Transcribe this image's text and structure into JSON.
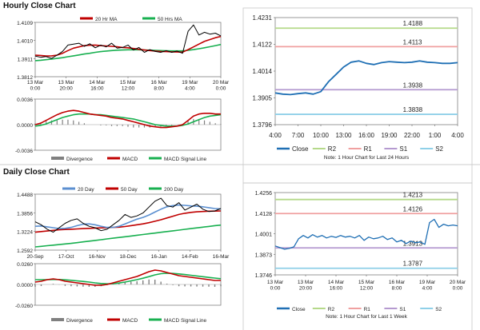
{
  "sections": {
    "hourly_title": "Hourly Close Chart",
    "daily_title": "Daily Close Chart"
  },
  "colors": {
    "close": "#1f6fb4",
    "r2": "#b5d98a",
    "r1": "#f0a0a0",
    "s1": "#b59ad0",
    "s2": "#8fd0e8",
    "ma20h": "#c00000",
    "ma50h": "#18b050",
    "d20": "#5b8fd0",
    "d50": "#c00000",
    "d200": "#18b050",
    "price": "#000000",
    "macd": "#c00000",
    "signal": "#18b050",
    "divergence": "#808080"
  },
  "chart_data": [
    {
      "id": "hourly_price",
      "type": "line",
      "legend": [
        "20 Hr MA",
        "50 Hrs MA"
      ],
      "y_ticks": [
        "1.4109",
        "1.4010",
        "1.3911",
        "1.3812"
      ],
      "ylim": [
        1.3812,
        1.4109
      ],
      "x_labels": [
        "13 Mar\n0:00",
        "13 Mar\n20:00",
        "14 Mar\n16:00",
        "15 Mar\n12:00",
        "16 Mar\n8:00",
        "19 Mar\n4:00",
        "20 Mar\n0:00"
      ],
      "series": [
        {
          "name": "Close",
          "values": [
            1.3925,
            1.3918,
            1.3922,
            1.3912,
            1.393,
            1.395,
            1.3985,
            1.399,
            1.3995,
            1.3978,
            1.3992,
            1.397,
            1.3985,
            1.3975,
            1.3995,
            1.3968,
            1.3972,
            1.3985,
            1.3958,
            1.3972,
            1.3945,
            1.396,
            1.395,
            1.3945,
            1.3955,
            1.3945,
            1.3952,
            1.394,
            1.406,
            1.4095,
            1.404,
            1.4055,
            1.4045,
            1.405,
            1.4035
          ]
        },
        {
          "name": "20 Hr MA",
          "values": [
            1.393,
            1.3928,
            1.3925,
            1.3926,
            1.393,
            1.394,
            1.3955,
            1.3968,
            1.3975,
            1.3982,
            1.3984,
            1.3985,
            1.3982,
            1.398,
            1.3978,
            1.3976,
            1.3972,
            1.397,
            1.3966,
            1.3962,
            1.3958,
            1.3955,
            1.3952,
            1.395,
            1.3949,
            1.3948,
            1.3947,
            1.3946,
            1.396,
            1.3975,
            1.399,
            1.4005,
            1.4015,
            1.4025,
            1.4032
          ]
        },
        {
          "name": "50 Hrs MA",
          "values": [
            1.39,
            1.3902,
            1.3905,
            1.3908,
            1.3912,
            1.3916,
            1.3921,
            1.3926,
            1.3931,
            1.3936,
            1.394,
            1.3945,
            1.3949,
            1.3952,
            1.3955,
            1.3957,
            1.3958,
            1.3959,
            1.3959,
            1.3959,
            1.3958,
            1.3957,
            1.3956,
            1.3955,
            1.3954,
            1.3953,
            1.3953,
            1.3953,
            1.3956,
            1.396,
            1.3965,
            1.397,
            1.3976,
            1.3982,
            1.3988
          ]
        }
      ]
    },
    {
      "id": "hourly_macd",
      "type": "line",
      "legend": [
        "Divergence",
        "MACD",
        "MACD Signal Line"
      ],
      "y_ticks": [
        "0.0036",
        "0.0000",
        "-0.0036"
      ],
      "ylim": [
        -0.0036,
        0.0036
      ],
      "x_labels": [
        "13 Mar\n0:00",
        "13 Mar\n20:00",
        "14 Mar\n16:00",
        "15 Mar\n12:00",
        "16 Mar\n8:00",
        "19 Mar\n4:00",
        "20 Mar\n0:00"
      ],
      "series": [
        {
          "name": "MACD",
          "values": [
            0.0,
            0.0002,
            0.0006,
            0.001,
            0.0014,
            0.0017,
            0.0019,
            0.002,
            0.0019,
            0.0017,
            0.0015,
            0.0014,
            0.0013,
            0.0012,
            0.001,
            0.0009,
            0.0008,
            0.0006,
            0.0004,
            0.0002,
            0.0,
            -0.0002,
            -0.0003,
            -0.0004,
            -0.0004,
            -0.0003,
            -0.0002,
            0.0,
            0.0006,
            0.0012,
            0.0015,
            0.0016,
            0.0016,
            0.0015,
            0.0015
          ]
        },
        {
          "name": "MACD Signal Line",
          "values": [
            -0.0002,
            -0.0001,
            0.0001,
            0.0004,
            0.0007,
            0.001,
            0.0012,
            0.0014,
            0.0015,
            0.0015,
            0.0015,
            0.0014,
            0.0014,
            0.0013,
            0.0012,
            0.0011,
            0.001,
            0.0009,
            0.0008,
            0.0006,
            0.0004,
            0.0002,
            0.0,
            -0.0001,
            -0.0002,
            -0.0002,
            -0.0002,
            -0.0001,
            0.0001,
            0.0004,
            0.0007,
            0.001,
            0.0012,
            0.0013,
            0.0014
          ]
        },
        {
          "name": "Divergence",
          "values": [
            0.0002,
            0.0003,
            0.0005,
            0.0006,
            0.0007,
            0.0007,
            0.0007,
            0.0006,
            0.0004,
            0.0002,
            0.0,
            0.0,
            -0.0001,
            -0.0001,
            -0.0002,
            -0.0002,
            -0.0002,
            -0.0003,
            -0.0004,
            -0.0004,
            -0.0004,
            -0.0004,
            -0.0003,
            -0.0003,
            -0.0002,
            -0.0001,
            0.0,
            0.0001,
            0.0005,
            0.0008,
            0.0008,
            0.0006,
            0.0004,
            0.0002,
            0.0001
          ]
        }
      ]
    },
    {
      "id": "hourly_levels",
      "type": "line",
      "y_ticks": [
        "1.4231",
        "1.4122",
        "1.4014",
        "1.3905",
        "1.3796"
      ],
      "ylim": [
        1.3796,
        1.4231
      ],
      "x_labels": [
        "4:00",
        "7:00",
        "10:00",
        "13:00",
        "16:00",
        "19:00",
        "22:00",
        "1:00",
        "4:00"
      ],
      "levels": [
        {
          "name": "R2",
          "value": 1.4188,
          "label": "1.4188"
        },
        {
          "name": "R1",
          "value": 1.4113,
          "label": "1.4113"
        },
        {
          "name": "S1",
          "value": 1.3938,
          "label": "1.3938"
        },
        {
          "name": "S2",
          "value": 1.3838,
          "label": "1.3838"
        }
      ],
      "series": [
        {
          "name": "Close",
          "values": [
            1.3925,
            1.392,
            1.3918,
            1.3922,
            1.3925,
            1.392,
            1.393,
            1.397,
            1.4,
            1.403,
            1.405,
            1.4055,
            1.4045,
            1.404,
            1.4048,
            1.4052,
            1.405,
            1.4048,
            1.405,
            1.4055,
            1.405,
            1.4048,
            1.4045,
            1.4045,
            1.4048
          ]
        }
      ],
      "legend": [
        "Close",
        "R2",
        "R1",
        "S1",
        "S2"
      ],
      "note": "Note: 1 Hour Chart for Last 24 Hours"
    },
    {
      "id": "daily_price",
      "type": "line",
      "legend": [
        "20 Day",
        "50 Day",
        "200 Day"
      ],
      "y_ticks": [
        "1.4488",
        "1.3856",
        "1.3224",
        "1.2592"
      ],
      "ylim": [
        1.2592,
        1.4488
      ],
      "x_labels": [
        "20-Sep",
        "17-Oct",
        "16-Nov",
        "18-Dec",
        "16-Jan",
        "14-Feb",
        "16-Mar"
      ],
      "series": [
        {
          "name": "Close",
          "values": [
            1.355,
            1.345,
            1.33,
            1.32,
            1.335,
            1.35,
            1.36,
            1.365,
            1.35,
            1.34,
            1.335,
            1.325,
            1.33,
            1.345,
            1.36,
            1.38,
            1.37,
            1.375,
            1.385,
            1.405,
            1.425,
            1.435,
            1.41,
            1.405,
            1.42,
            1.395,
            1.405,
            1.415,
            1.398,
            1.39,
            1.392,
            1.4
          ]
        },
        {
          "name": "20 Day",
          "values": [
            1.34,
            1.341,
            1.338,
            1.335,
            1.332,
            1.333,
            1.336,
            1.342,
            1.347,
            1.348,
            1.345,
            1.34,
            1.336,
            1.336,
            1.34,
            1.348,
            1.356,
            1.364,
            1.37,
            1.378,
            1.388,
            1.398,
            1.406,
            1.41,
            1.412,
            1.411,
            1.409,
            1.408,
            1.406,
            1.403,
            1.4,
            1.399
          ]
        },
        {
          "name": "50 Day",
          "values": [
            1.32,
            1.322,
            1.324,
            1.326,
            1.328,
            1.329,
            1.33,
            1.331,
            1.332,
            1.333,
            1.334,
            1.3345,
            1.335,
            1.336,
            1.337,
            1.339,
            1.342,
            1.345,
            1.348,
            1.352,
            1.357,
            1.362,
            1.368,
            1.374,
            1.38,
            1.384,
            1.387,
            1.389,
            1.39,
            1.391,
            1.3915,
            1.392
          ]
        },
        {
          "name": "200 Day",
          "values": [
            1.27,
            1.272,
            1.274,
            1.276,
            1.278,
            1.28,
            1.282,
            1.2845,
            1.287,
            1.2895,
            1.292,
            1.2945,
            1.297,
            1.2995,
            1.302,
            1.3045,
            1.307,
            1.3095,
            1.312,
            1.3145,
            1.317,
            1.3195,
            1.322,
            1.3245,
            1.327,
            1.3295,
            1.332,
            1.3345,
            1.337,
            1.3395,
            1.342,
            1.344
          ]
        }
      ]
    },
    {
      "id": "daily_macd",
      "type": "line",
      "legend": [
        "Divergence",
        "MACD",
        "MACD Signal Line"
      ],
      "y_ticks": [
        "0.0260",
        "0.0000",
        "-0.0260"
      ],
      "ylim": [
        -0.026,
        0.026
      ],
      "x_labels": [
        "20-Sep",
        "17-Oct",
        "16-Nov",
        "18-Dec",
        "16-Jan",
        "14-Feb",
        "16-Mar"
      ],
      "series": [
        {
          "name": "MACD",
          "values": [
            0.003,
            0.004,
            0.006,
            0.007,
            0.006,
            0.004,
            0.003,
            0.002,
            0.001,
            0.0,
            -0.001,
            -0.001,
            0.0,
            0.002,
            0.004,
            0.006,
            0.008,
            0.01,
            0.013,
            0.016,
            0.018,
            0.017,
            0.015,
            0.013,
            0.011,
            0.01,
            0.009,
            0.008,
            0.007,
            0.006,
            0.005,
            0.005
          ]
        },
        {
          "name": "MACD Signal Line",
          "values": [
            0.006,
            0.006,
            0.006,
            0.0062,
            0.0062,
            0.0058,
            0.0052,
            0.0045,
            0.0038,
            0.003,
            0.002,
            0.0012,
            0.0008,
            0.001,
            0.0018,
            0.003,
            0.0045,
            0.006,
            0.0078,
            0.0098,
            0.012,
            0.0135,
            0.014,
            0.0138,
            0.0132,
            0.0124,
            0.0115,
            0.0106,
            0.0097,
            0.0088,
            0.008,
            0.0072
          ]
        },
        {
          "name": "Divergence",
          "values": [
            -0.003,
            -0.002,
            0.0,
            0.0008,
            -0.0002,
            -0.0018,
            -0.0022,
            -0.0025,
            -0.0028,
            -0.003,
            -0.003,
            -0.0022,
            -0.0008,
            0.001,
            0.0022,
            0.003,
            0.0035,
            0.004,
            0.0052,
            0.0062,
            0.006,
            0.0035,
            0.001,
            -0.0008,
            -0.0022,
            -0.0024,
            -0.0025,
            -0.0026,
            -0.0027,
            -0.0028,
            -0.003,
            -0.0022
          ]
        }
      ]
    },
    {
      "id": "daily_levels",
      "type": "line",
      "y_ticks": [
        "1.4256",
        "1.4128",
        "1.4001",
        "1.3873",
        "1.3746"
      ],
      "ylim": [
        1.3746,
        1.4256
      ],
      "x_labels": [
        "13 Mar\n0:00",
        "13 Mar\n20:00",
        "14 Mar\n16:00",
        "15 Mar\n12:00",
        "16 Mar\n8:00",
        "19 Mar\n4:00",
        "20 Mar\n0:00"
      ],
      "levels": [
        {
          "name": "R2",
          "value": 1.4213,
          "label": "1.4213"
        },
        {
          "name": "R1",
          "value": 1.4126,
          "label": "1.4126"
        },
        {
          "name": "S1",
          "value": 1.3913,
          "label": "1.3913"
        },
        {
          "name": "S2",
          "value": 1.3787,
          "label": "1.3787"
        }
      ],
      "series": [
        {
          "name": "Close",
          "values": [
            1.3925,
            1.3915,
            1.3905,
            1.391,
            1.392,
            1.397,
            1.399,
            1.3975,
            1.3995,
            1.398,
            1.399,
            1.3975,
            1.3985,
            1.3978,
            1.399,
            1.398,
            1.3985,
            1.3975,
            1.399,
            1.396,
            1.398,
            1.397,
            1.3975,
            1.3985,
            1.3965,
            1.3975,
            1.395,
            1.396,
            1.394,
            1.3955,
            1.3945,
            1.395,
            1.3935,
            1.407,
            1.409,
            1.404,
            1.406,
            1.405,
            1.4055,
            1.405
          ]
        }
      ],
      "legend": [
        "Close",
        "R2",
        "R1",
        "S1",
        "S2"
      ],
      "note": "Note: 1 Hour Chart for Last 1 Week"
    }
  ]
}
